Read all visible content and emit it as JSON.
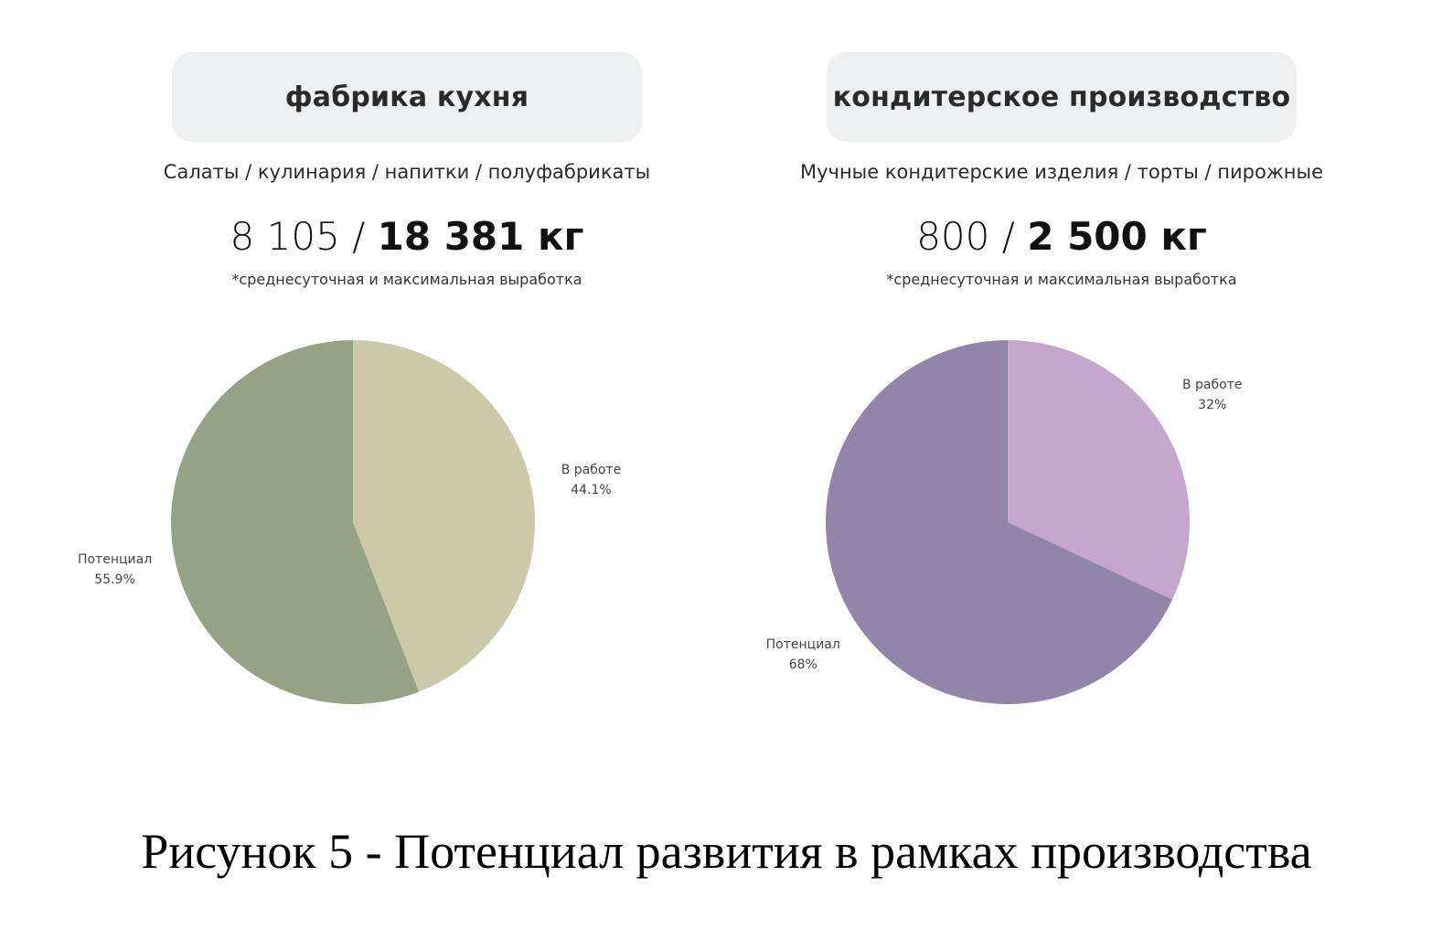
{
  "left": {
    "title": "фабрика кухня",
    "subtitle": "Салаты / кулинария / напитки / полуфабрикаты",
    "figure_main": "8 105 / ",
    "figure_max": "18 381 кг",
    "note": "*среднесуточная и максимальная выработка"
  },
  "right": {
    "title": "кондитерское производство",
    "subtitle": "Мучные кондитерские изделия / торты / пирожные",
    "figure_main": "800 / ",
    "figure_max": "2 500 кг",
    "note": "*среднесуточная и максимальная выработка"
  },
  "caption": "Рисунок 5 - Потенциал развития в рамках производства",
  "chart_data": [
    {
      "type": "pie",
      "title": "",
      "slices": [
        {
          "label": "В работе",
          "value": 44.1,
          "display": "44.1%",
          "color": "#cbc9a9"
        },
        {
          "label": "Потенциал",
          "value": 55.9,
          "display": "55.9%",
          "color": "#95a384"
        }
      ]
    },
    {
      "type": "pie",
      "title": "",
      "slices": [
        {
          "label": "В работе",
          "value": 32,
          "display": "32%",
          "color": "#c5a6cc"
        },
        {
          "label": "Потенциал",
          "value": 68,
          "display": "68%",
          "color": "#9185a9"
        }
      ]
    }
  ]
}
